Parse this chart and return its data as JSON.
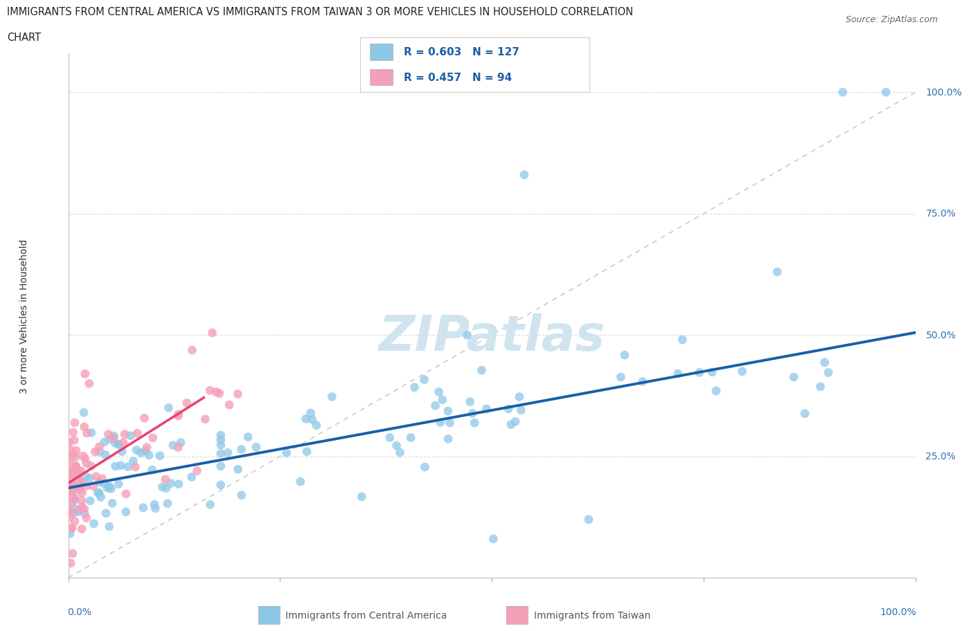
{
  "title_line1": "IMMIGRANTS FROM CENTRAL AMERICA VS IMMIGRANTS FROM TAIWAN 3 OR MORE VEHICLES IN HOUSEHOLD CORRELATION",
  "title_line2": "CHART",
  "source_text": "Source: ZipAtlas.com",
  "ylabel": "3 or more Vehicles in Household",
  "r_central": 0.603,
  "n_central": 127,
  "r_taiwan": 0.457,
  "n_taiwan": 94,
  "color_central": "#8ec8e8",
  "color_taiwan": "#f4a0b8",
  "trendline_central": "#1a5fa8",
  "trendline_taiwan": "#e84070",
  "diagonal_color": "#cccccc",
  "ytick_labels": [
    "25.0%",
    "50.0%",
    "75.0%",
    "100.0%"
  ],
  "ytick_values": [
    0.25,
    0.5,
    0.75,
    1.0
  ],
  "watermark_text": "ZIPatlas",
  "watermark_color": "#d0e4f0",
  "background_color": "#ffffff",
  "legend_label_central": "Immigrants from Central America",
  "legend_label_taiwan": "Immigrants from Taiwan",
  "central_intercept": 0.185,
  "central_slope": 0.32,
  "taiwan_intercept": 0.195,
  "taiwan_slope": 1.1
}
